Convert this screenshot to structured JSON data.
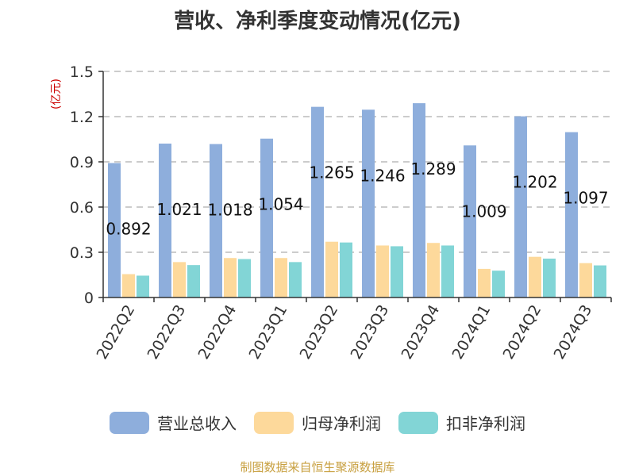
{
  "chart_data": {
    "type": "bar",
    "title": "营收、净利季度变动情况(亿元)",
    "ylabel": "(亿元)",
    "xlabel": "",
    "ylim": [
      0,
      1.5
    ],
    "yticks": [
      "0",
      "0.3",
      "0.6",
      "0.9",
      "1.2",
      "1.5"
    ],
    "grid": true,
    "legend_position": "bottom",
    "categories": [
      "2022Q2",
      "2022Q3",
      "2022Q4",
      "2023Q1",
      "2023Q2",
      "2023Q3",
      "2023Q4",
      "2024Q1",
      "2024Q2",
      "2024Q3"
    ],
    "series": [
      {
        "name": "营业总收入",
        "color": "#8eaedc",
        "values": [
          0.892,
          1.021,
          1.018,
          1.054,
          1.265,
          1.246,
          1.289,
          1.009,
          1.202,
          1.097
        ],
        "labels": [
          "0.892",
          "1.021",
          "1.018",
          "1.054",
          "1.265",
          "1.246",
          "1.289",
          "1.009",
          "1.202",
          "1.097"
        ]
      },
      {
        "name": "归母净利润",
        "color": "#fdd99b",
        "values": [
          0.155,
          0.235,
          0.262,
          0.262,
          0.37,
          0.345,
          0.362,
          0.19,
          0.27,
          0.228
        ]
      },
      {
        "name": "扣非净利润",
        "color": "#82d5d6",
        "values": [
          0.145,
          0.215,
          0.255,
          0.235,
          0.365,
          0.34,
          0.345,
          0.178,
          0.258,
          0.213
        ]
      }
    ]
  },
  "source_note": "制图数据来自恒生聚源数据库"
}
